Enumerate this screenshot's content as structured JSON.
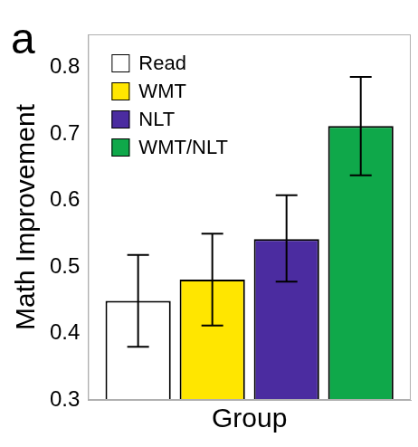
{
  "chart_data": {
    "type": "bar",
    "annotations": [
      "a"
    ],
    "x_label": "Group",
    "y_label": "Math Improvement",
    "categories": [
      null
    ],
    "series": [
      {
        "name": "Read",
        "color": "#ffffff",
        "values": [
          0.449
        ],
        "error_low": [
          0.38
        ],
        "error_high": [
          0.518
        ]
      },
      {
        "name": "WMT",
        "color": "#ffe600",
        "values": [
          0.481
        ],
        "error_low": [
          0.412
        ],
        "error_high": [
          0.55
        ]
      },
      {
        "name": "NLT",
        "color": "#4b2ca0",
        "values": [
          0.542
        ],
        "error_low": [
          0.478
        ],
        "error_high": [
          0.608
        ]
      },
      {
        "name": "WMT/NLT",
        "color": "#0fa84a",
        "values": [
          0.712
        ],
        "error_low": [
          0.638
        ],
        "error_high": [
          0.786
        ]
      }
    ],
    "ylim": [
      0.3,
      0.85
    ],
    "yticks": [
      0.3,
      0.4,
      0.5,
      0.6,
      0.7,
      0.8
    ],
    "grid": false,
    "legend": "upper left",
    "tick_labels": "y"
  }
}
